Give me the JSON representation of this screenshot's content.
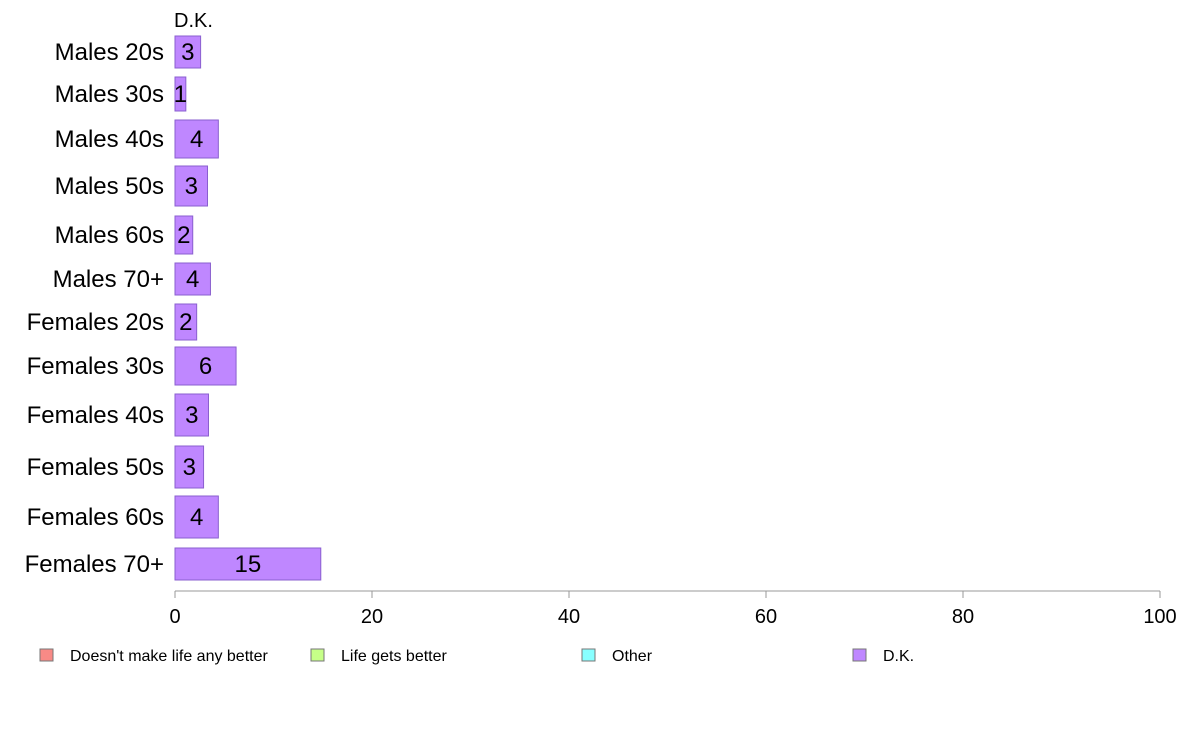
{
  "chart_data": {
    "type": "bar",
    "orientation": "horizontal",
    "title": "D.K.",
    "categories": [
      "Males 20s",
      "Males 30s",
      "Males 40s",
      "Males 50s",
      "Males 60s",
      "Males 70+",
      "Females 20s",
      "Females 30s",
      "Females 40s",
      "Females 50s",
      "Females 60s",
      "Females 70+"
    ],
    "series": [
      {
        "name": "D.K.",
        "values": [
          2.6,
          1.1,
          4.4,
          3.3,
          1.8,
          3.6,
          2.2,
          6.2,
          3.4,
          2.9,
          4.4,
          14.8
        ],
        "labels": [
          "3",
          "1",
          "4",
          "3",
          "2",
          "4",
          "2",
          "6",
          "3",
          "3",
          "4",
          "15"
        ],
        "color": "#bf87ff"
      }
    ],
    "xlim": [
      0,
      100
    ],
    "xticks": [
      "0",
      "20",
      "40",
      "60",
      "80",
      "100"
    ],
    "grid": false,
    "legend_position": "bottom",
    "legend": [
      {
        "label": "Doesn't make life any better",
        "color": "#f88a86"
      },
      {
        "label": "Life gets better",
        "color": "#c6ff88"
      },
      {
        "label": "Other",
        "color": "#88ffff"
      },
      {
        "label": "D.K.",
        "color": "#bf87ff"
      }
    ]
  },
  "colors": {
    "bar_stroke": "#8a5fcf",
    "axis": "#999999",
    "legend_stroke": "#777777"
  }
}
